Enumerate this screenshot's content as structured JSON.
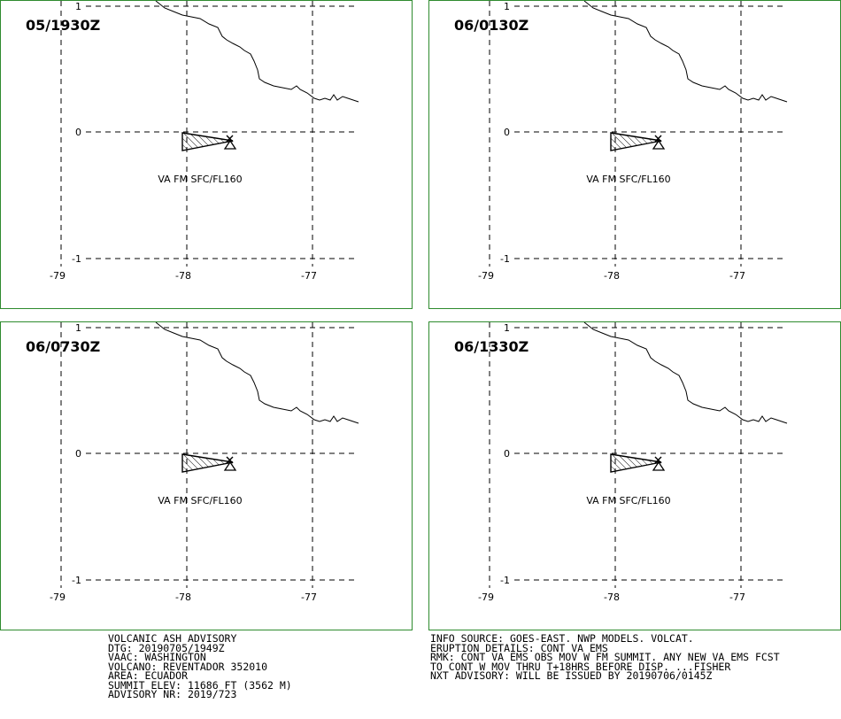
{
  "colors": {
    "frame": "#2e8b2e",
    "lines": "#000000",
    "background": "#ffffff"
  },
  "panels": [
    {
      "time": "05/1930Z"
    },
    {
      "time": "06/0130Z"
    },
    {
      "time": "06/0730Z"
    },
    {
      "time": "06/1330Z"
    }
  ],
  "axes": {
    "lon_labels": [
      "-79",
      "-78",
      "-77"
    ],
    "lat_labels": [
      "1",
      "0",
      "-1"
    ]
  },
  "ash_label": "VA FM SFC/FL160",
  "volcano_marker": "volcano-triangle-icon",
  "advisory_left": [
    "VOLCANIC ASH ADVISORY",
    "DTG: 20190705/1949Z",
    "VAAC: WASHINGTON",
    "VOLCANO: REVENTADOR 352010",
    "AREA: ECUADOR",
    "SUMMIT ELEV: 11686 FT (3562 M)",
    "ADVISORY NR: 2019/723"
  ],
  "advisory_right": [
    "INFO SOURCE: GOES-EAST. NWP MODELS. VOLCAT.",
    "ERUPTION DETAILS: CONT VA EMS",
    "RMK: CONT VA EMS OBS MOV W FM SUMMIT. ANY NEW VA EMS FCST",
    "TO CONT W MOV THRU T+18HRS BEFORE DISP. ...FISHER",
    "NXT ADVISORY: WILL BE ISSUED BY 20190706/0145Z"
  ]
}
